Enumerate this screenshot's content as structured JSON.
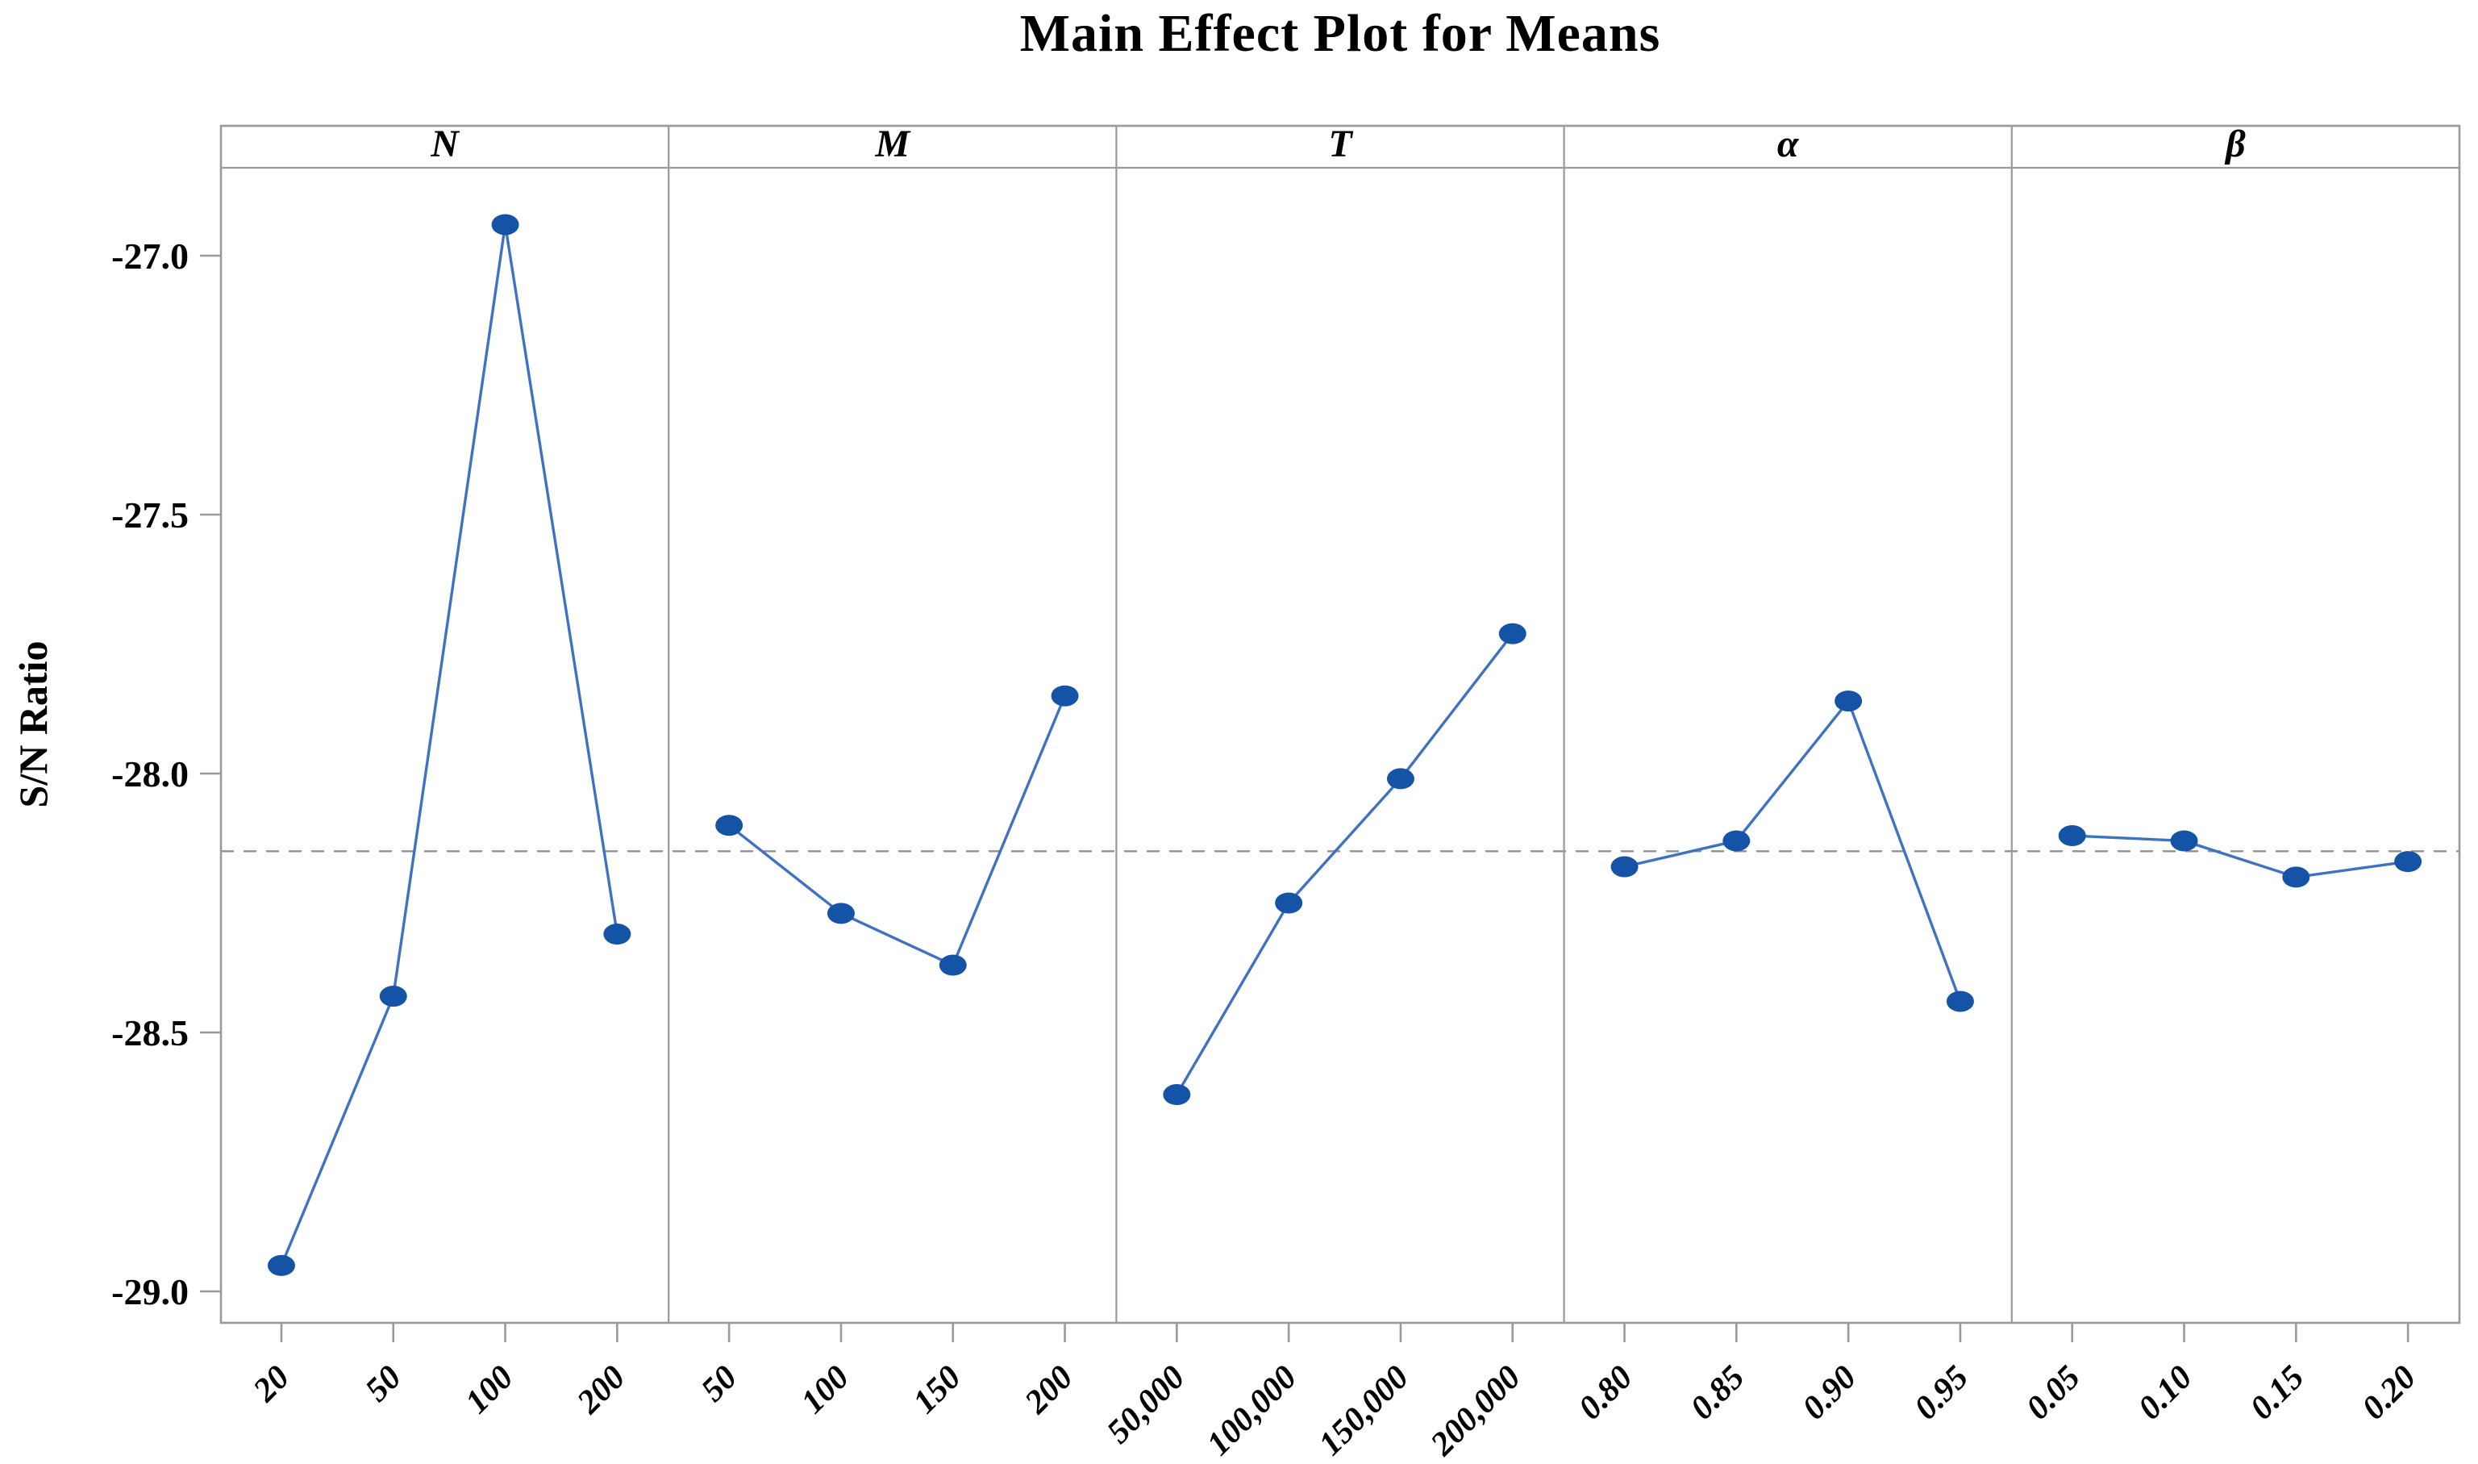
{
  "chart_data": {
    "type": "line",
    "title": "Main Effect Plot for Means",
    "ylabel": "S/N Ratio",
    "ylim": [
      -29.08,
      -26.82
    ],
    "grid": false,
    "legend": null,
    "mean_line": {
      "value": -28.15,
      "style": "dashed"
    },
    "yticks": [
      {
        "label": "-27.0",
        "value": -27.0
      },
      {
        "label": "-27.5",
        "value": -27.5
      },
      {
        "label": "-28.0",
        "value": -28.0
      },
      {
        "label": "-28.5",
        "value": -28.5
      },
      {
        "label": "-29.0",
        "value": -29.0
      }
    ],
    "panels": [
      {
        "factor": "N",
        "categories": [
          "20",
          "50",
          "100",
          "200"
        ],
        "values": [
          -28.95,
          -28.43,
          -26.94,
          -28.31
        ]
      },
      {
        "factor": "M",
        "categories": [
          "50",
          "100",
          "150",
          "200"
        ],
        "values": [
          -28.1,
          -28.27,
          -28.37,
          -27.85
        ]
      },
      {
        "factor": "T",
        "categories": [
          "50,000",
          "100,000",
          "150,000",
          "200,000"
        ],
        "values": [
          -28.62,
          -28.25,
          -28.01,
          -27.73
        ]
      },
      {
        "factor": "α",
        "categories": [
          "0.80",
          "0.85",
          "0.90",
          "0.95"
        ],
        "values": [
          -28.18,
          -28.13,
          -27.86,
          -28.44
        ]
      },
      {
        "factor": "β",
        "categories": [
          "0.05",
          "0.10",
          "0.15",
          "0.20"
        ],
        "values": [
          -28.12,
          -28.13,
          -28.2,
          -28.17
        ]
      }
    ],
    "colors": {
      "marker": "#1453a6",
      "line": "#3f72c0",
      "mean_line": "#909090",
      "frame": "#9a9a9a",
      "text": "#000000"
    }
  }
}
